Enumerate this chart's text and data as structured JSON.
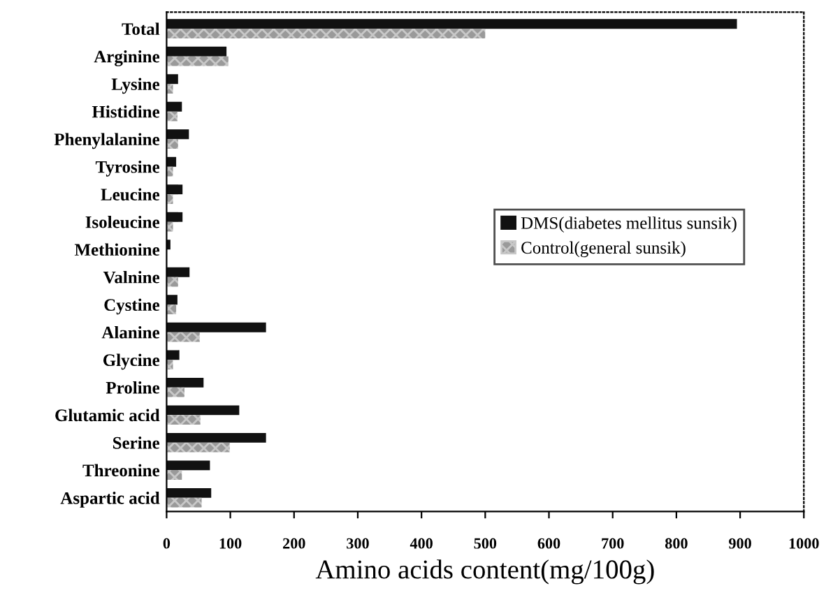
{
  "chart_data": {
    "type": "bar",
    "orientation": "horizontal",
    "xlabel": "Amino acids content(mg/100g)",
    "categories": [
      "Total",
      "Arginine",
      "Lysine",
      "Histidine",
      "Phenylalanine",
      "Tyrosine",
      "Leucine",
      "Isoleucine",
      "Methionine",
      "Valnine",
      "Cystine",
      "Alanine",
      "Glycine",
      "Proline",
      "Glutamic acid",
      "Serine",
      "Threonine",
      "Aspartic acid"
    ],
    "series": [
      {
        "name": "DMS(diabetes mellitus sunsik)",
        "color": "#111111",
        "values": [
          895,
          94,
          18,
          24,
          35,
          15,
          25,
          25,
          6,
          36,
          17,
          156,
          20,
          58,
          114,
          156,
          68,
          70
        ]
      },
      {
        "name": "Control(general sunsik)",
        "color": "#9a9a9a",
        "values": [
          500,
          97,
          10,
          17,
          18,
          10,
          10,
          10,
          null,
          18,
          15,
          52,
          10,
          28,
          53,
          99,
          24,
          55
        ]
      }
    ],
    "xlim": [
      0,
      1000
    ],
    "xticks": [
      0,
      100,
      200,
      300,
      400,
      500,
      600,
      700,
      800,
      900,
      1000
    ],
    "grid": false,
    "legend": "right"
  }
}
